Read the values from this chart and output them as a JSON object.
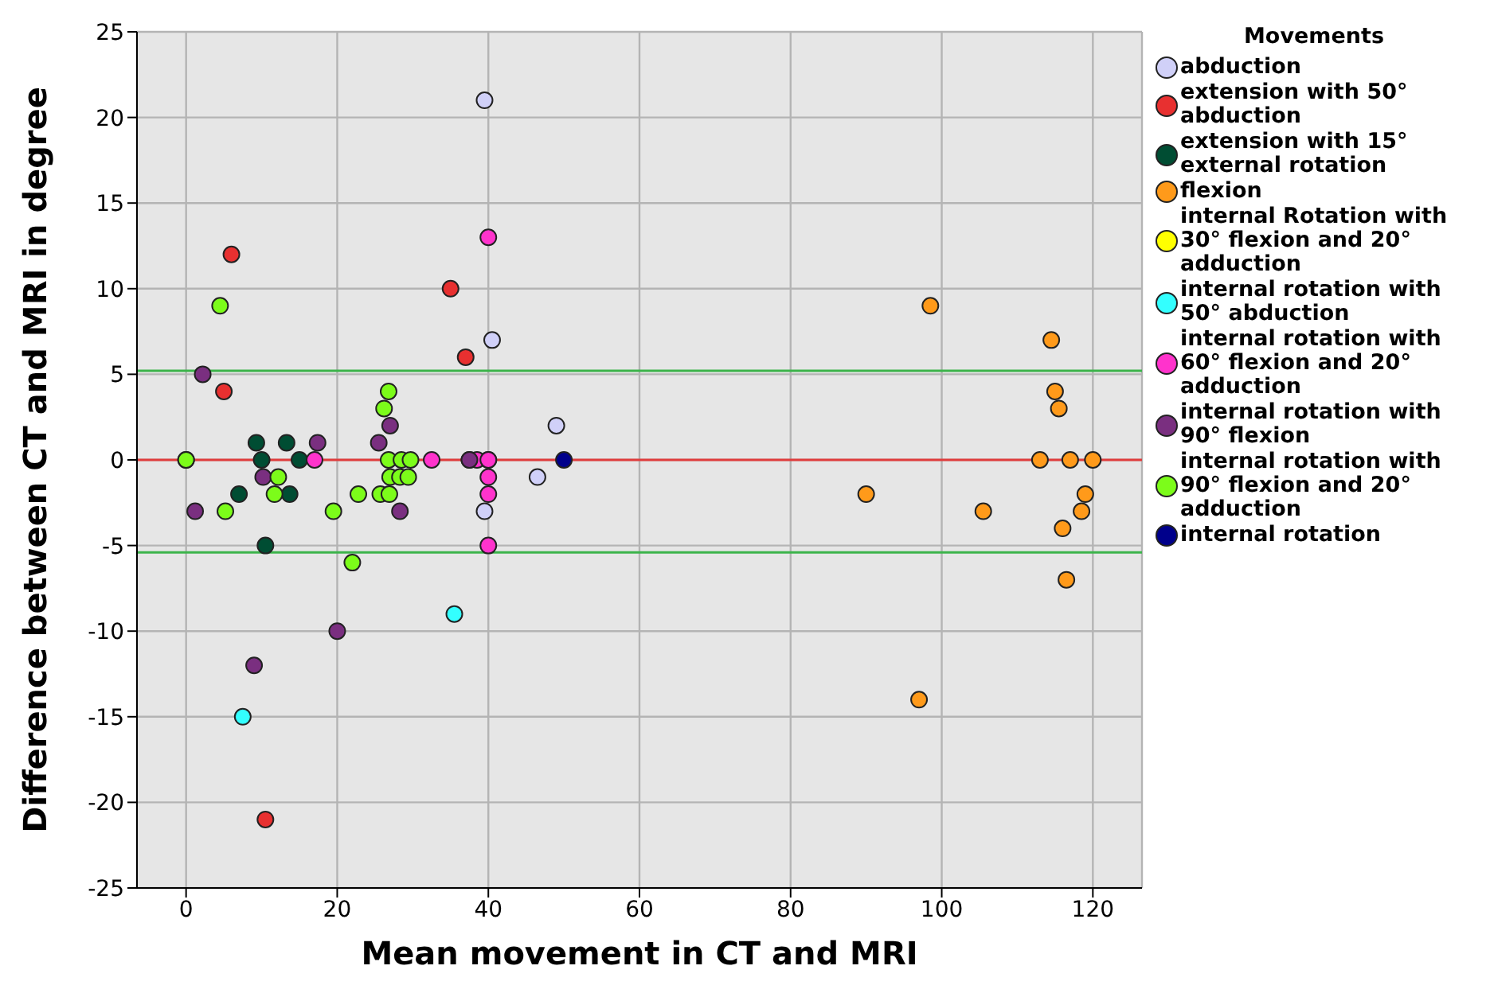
{
  "chart_data": {
    "type": "scatter",
    "xlabel": "Mean movement in CT and MRI",
    "ylabel": "Difference between CT and MRI in degree",
    "legend_title": "Movements",
    "legend": "right",
    "grid": true,
    "marker": "circle",
    "xlim": [
      -6.5,
      126.5
    ],
    "xticks": [
      0,
      20,
      40,
      60,
      80,
      100,
      120
    ],
    "ylim": [
      -25,
      25
    ],
    "yticks": [
      -25,
      -20,
      -15,
      -10,
      -5,
      0,
      5,
      10,
      15,
      20,
      25
    ],
    "ref_lines": [
      {
        "axis": "y",
        "value": 0,
        "color": "#e03c3c"
      },
      {
        "axis": "y",
        "value": 5.2,
        "color": "#3cb44b"
      },
      {
        "axis": "y",
        "value": -5.4,
        "color": "#3cb44b"
      }
    ],
    "series": [
      {
        "name": "abduction",
        "color": "#d0d0f8",
        "x": [
          39.5,
          40.5,
          49,
          46.5,
          39.5,
          40
        ],
        "values": [
          21,
          7,
          2,
          -1,
          -3,
          0
        ]
      },
      {
        "name": "extension with 50° abduction",
        "color": "#e83030",
        "x": [
          6,
          5,
          35,
          37,
          10.5
        ],
        "values": [
          12,
          4,
          10,
          6,
          -21
        ]
      },
      {
        "name": "extension with 15° external rotation",
        "color": "#004d33",
        "x": [
          9.3,
          13.3,
          10,
          15,
          7,
          13.7,
          10.5,
          0
        ],
        "values": [
          1,
          1,
          0,
          0,
          -2,
          -2,
          -5,
          0
        ]
      },
      {
        "name": "flexion",
        "color": "#ff9a1a",
        "x": [
          98.5,
          114.5,
          115,
          115.5,
          113,
          117,
          120,
          90,
          105.5,
          119,
          118.5,
          116,
          116.5,
          97
        ],
        "values": [
          9,
          7,
          4,
          3,
          0,
          0,
          0,
          -2,
          -3,
          -2,
          -3,
          -4,
          -7,
          -14
        ]
      },
      {
        "name": "internal Rotation with 30° flexion and 20° adduction",
        "color": "#ffff00"
      },
      {
        "name": "internal rotation with 50° abduction",
        "color": "#33ffff",
        "x": [
          7.5,
          35.5
        ],
        "values": [
          -15,
          -9
        ]
      },
      {
        "name": "internal rotation with 60° flexion and 20° adduction",
        "color": "#ff33cc",
        "x": [
          17,
          32.5,
          37.5,
          38.5,
          40,
          40,
          40,
          40,
          40
        ],
        "values": [
          0,
          0,
          0,
          0,
          0,
          13,
          -1,
          -2,
          -5
        ]
      },
      {
        "name": "internal rotation with 90° flexion",
        "color": "#7a2f80",
        "x": [
          2.2,
          17.4,
          25.5,
          27,
          10.2,
          1.2,
          28.3,
          20,
          9,
          37.5
        ],
        "values": [
          5,
          1,
          1,
          2,
          -1,
          -3,
          -3,
          -10,
          -12,
          0
        ]
      },
      {
        "name": "internal rotation with 90° flexion and 20° adduction",
        "color": "#7cfc1a",
        "x": [
          4.5,
          0,
          12.2,
          11.7,
          5.2,
          19.5,
          22.8,
          22,
          26.8,
          26.2,
          26.8,
          28.5,
          29.7,
          27,
          28.3,
          29.4,
          25.7,
          26.9
        ],
        "values": [
          9,
          0,
          -1,
          -2,
          -3,
          -3,
          -2,
          -6,
          4,
          3,
          0,
          0,
          0,
          -1,
          -1,
          -1,
          -2,
          -2
        ]
      },
      {
        "name": "internal rotation",
        "color": "#00008b",
        "x": [
          50
        ],
        "values": [
          0
        ]
      }
    ]
  }
}
